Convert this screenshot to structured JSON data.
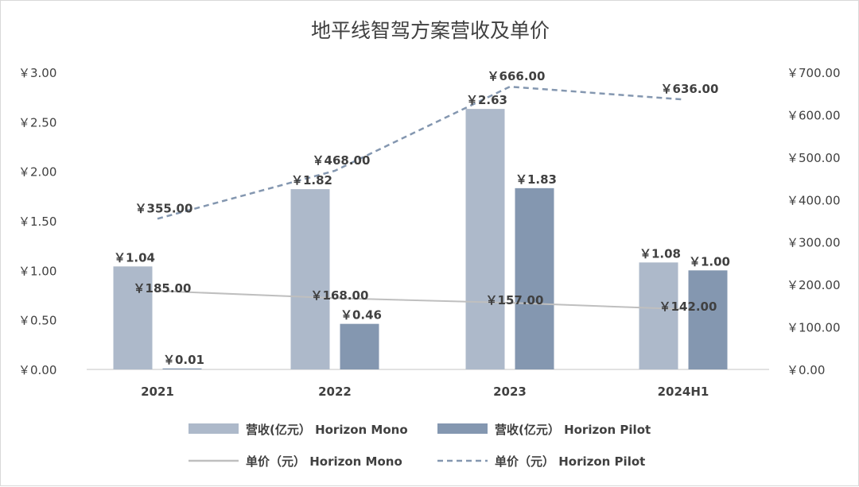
{
  "chart_data": {
    "type": "bar",
    "title": "地平线智驾方案营收及单价",
    "categories": [
      "2021",
      "2022",
      "2023",
      "2024H1"
    ],
    "currency_prefix": "￥",
    "y_left": {
      "min": 0,
      "max": 3,
      "step": 0.5,
      "decimals": 2
    },
    "y_right": {
      "min": 0,
      "max": 700,
      "step": 100,
      "decimals": 2
    },
    "series": [
      {
        "name": "营收(亿元） Horizon Mono",
        "kind": "bar",
        "axis": "left",
        "color": "#adb9ca",
        "values": [
          1.04,
          1.82,
          2.63,
          1.08
        ],
        "label_color": "#404040"
      },
      {
        "name": "营收(亿元） Horizon Pilot",
        "kind": "bar",
        "axis": "left",
        "color": "#8497b0",
        "values": [
          0.01,
          0.46,
          1.83,
          1.0
        ],
        "label_color": "#404040"
      },
      {
        "name": "单价（元） Horizon Mono",
        "kind": "line",
        "axis": "right",
        "color": "#bfbfbf",
        "dash": "solid",
        "values": [
          185.0,
          168.0,
          157.0,
          142.0
        ],
        "label_color": "#4f7a28"
      },
      {
        "name": "单价（元） Horizon Pilot",
        "kind": "line",
        "axis": "right",
        "color": "#8497b0",
        "dash": "dashed",
        "values": [
          355.0,
          468.0,
          666.0,
          636.0
        ],
        "label_color": "#404040"
      }
    ],
    "grid": false,
    "legend_position": "bottom"
  }
}
